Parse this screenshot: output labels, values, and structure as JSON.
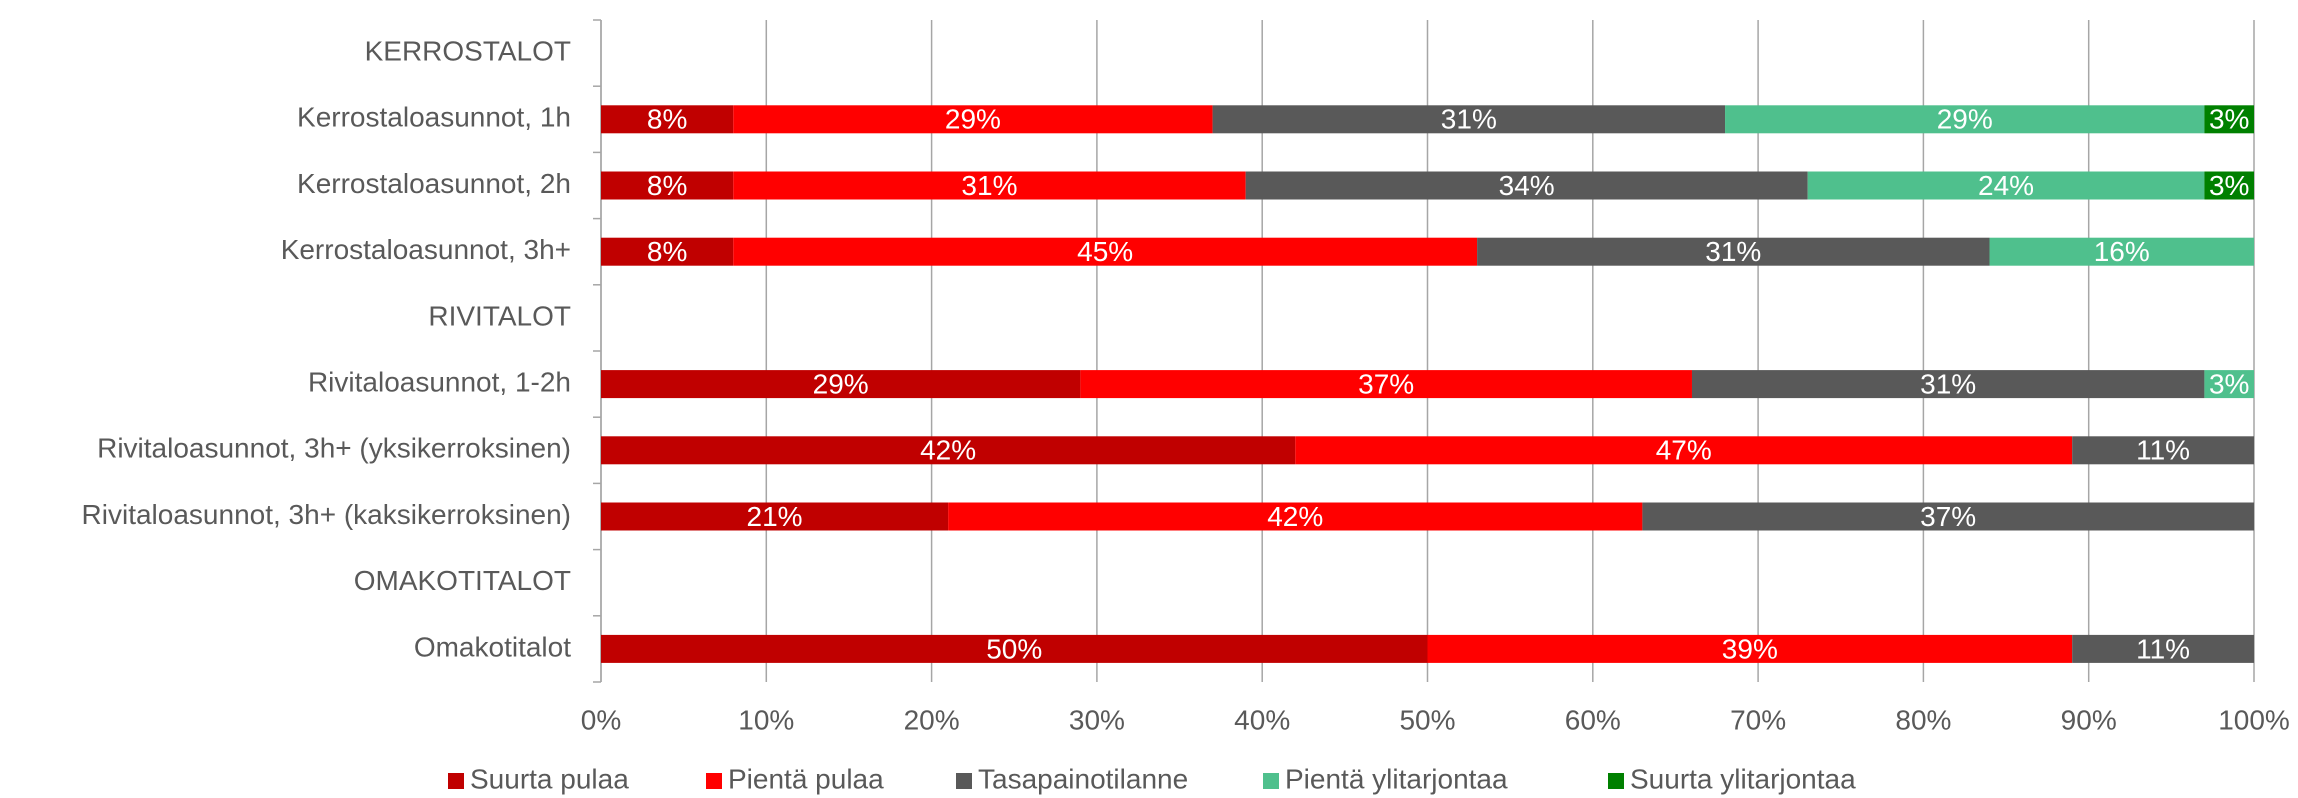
{
  "chart_data": {
    "type": "stacked-barh",
    "categories": [
      "KERROSTALOT",
      "Kerrostaloasunnot, 1h",
      "Kerrostaloasunnot, 2h",
      "Kerrostaloasunnot, 3h+",
      "RIVITALOT",
      "Rivitaloasunnot, 1-2h",
      "Rivitaloasunnot, 3h+ (yksikerroksinen)",
      "Rivitaloasunnot, 3h+ (kaksikerroksinen)",
      "OMAKOTITALOT",
      "Omakotitalot"
    ],
    "series": [
      {
        "name": "Suurta pulaa",
        "color": "#c00000",
        "values": [
          null,
          8,
          8,
          8,
          null,
          29,
          42,
          21,
          null,
          50
        ],
        "value_labels": [
          null,
          "8%",
          "8%",
          "8%",
          null,
          "29%",
          "42%",
          "21%",
          null,
          "50%"
        ]
      },
      {
        "name": "Pientä pulaa",
        "color": "#ff0000",
        "values": [
          null,
          29,
          31,
          45,
          null,
          37,
          47,
          42,
          null,
          39
        ],
        "value_labels": [
          null,
          "29%",
          "31%",
          "45%",
          null,
          "37%",
          "47%",
          "42%",
          null,
          "39%"
        ]
      },
      {
        "name": "Tasapainotilanne",
        "color": "#595959",
        "values": [
          null,
          31,
          34,
          31,
          null,
          31,
          11,
          37,
          null,
          11
        ],
        "value_labels": [
          null,
          "31%",
          "34%",
          "31%",
          null,
          "31%",
          "11%",
          "37%",
          null,
          "11%"
        ]
      },
      {
        "name": "Pientä ylitarjontaa",
        "color": "#4fc08d",
        "values": [
          null,
          29,
          24,
          16,
          null,
          3,
          null,
          null,
          null,
          null
        ],
        "value_labels": [
          null,
          "29%",
          "24%",
          "16%",
          null,
          "3%",
          null,
          null,
          null,
          null
        ]
      },
      {
        "name": "Suurta ylitarjontaa",
        "color": "#008000",
        "values": [
          null,
          3,
          3,
          null,
          null,
          null,
          null,
          null,
          null,
          null
        ],
        "value_labels": [
          null,
          "3%",
          "3%",
          null,
          null,
          null,
          null,
          null,
          null,
          null
        ]
      }
    ],
    "xlim": [
      0,
      100
    ],
    "xticks": [
      {
        "value": 0,
        "label": "0%"
      },
      {
        "value": 10,
        "label": "10%"
      },
      {
        "value": 20,
        "label": "20%"
      },
      {
        "value": 30,
        "label": "30%"
      },
      {
        "value": 40,
        "label": "40%"
      },
      {
        "value": 50,
        "label": "50%"
      },
      {
        "value": 60,
        "label": "60%"
      },
      {
        "value": 70,
        "label": "70%"
      },
      {
        "value": 80,
        "label": "80%"
      },
      {
        "value": 90,
        "label": "90%"
      },
      {
        "value": 100,
        "label": "100%"
      }
    ],
    "grid": true,
    "legend": "bottom"
  }
}
